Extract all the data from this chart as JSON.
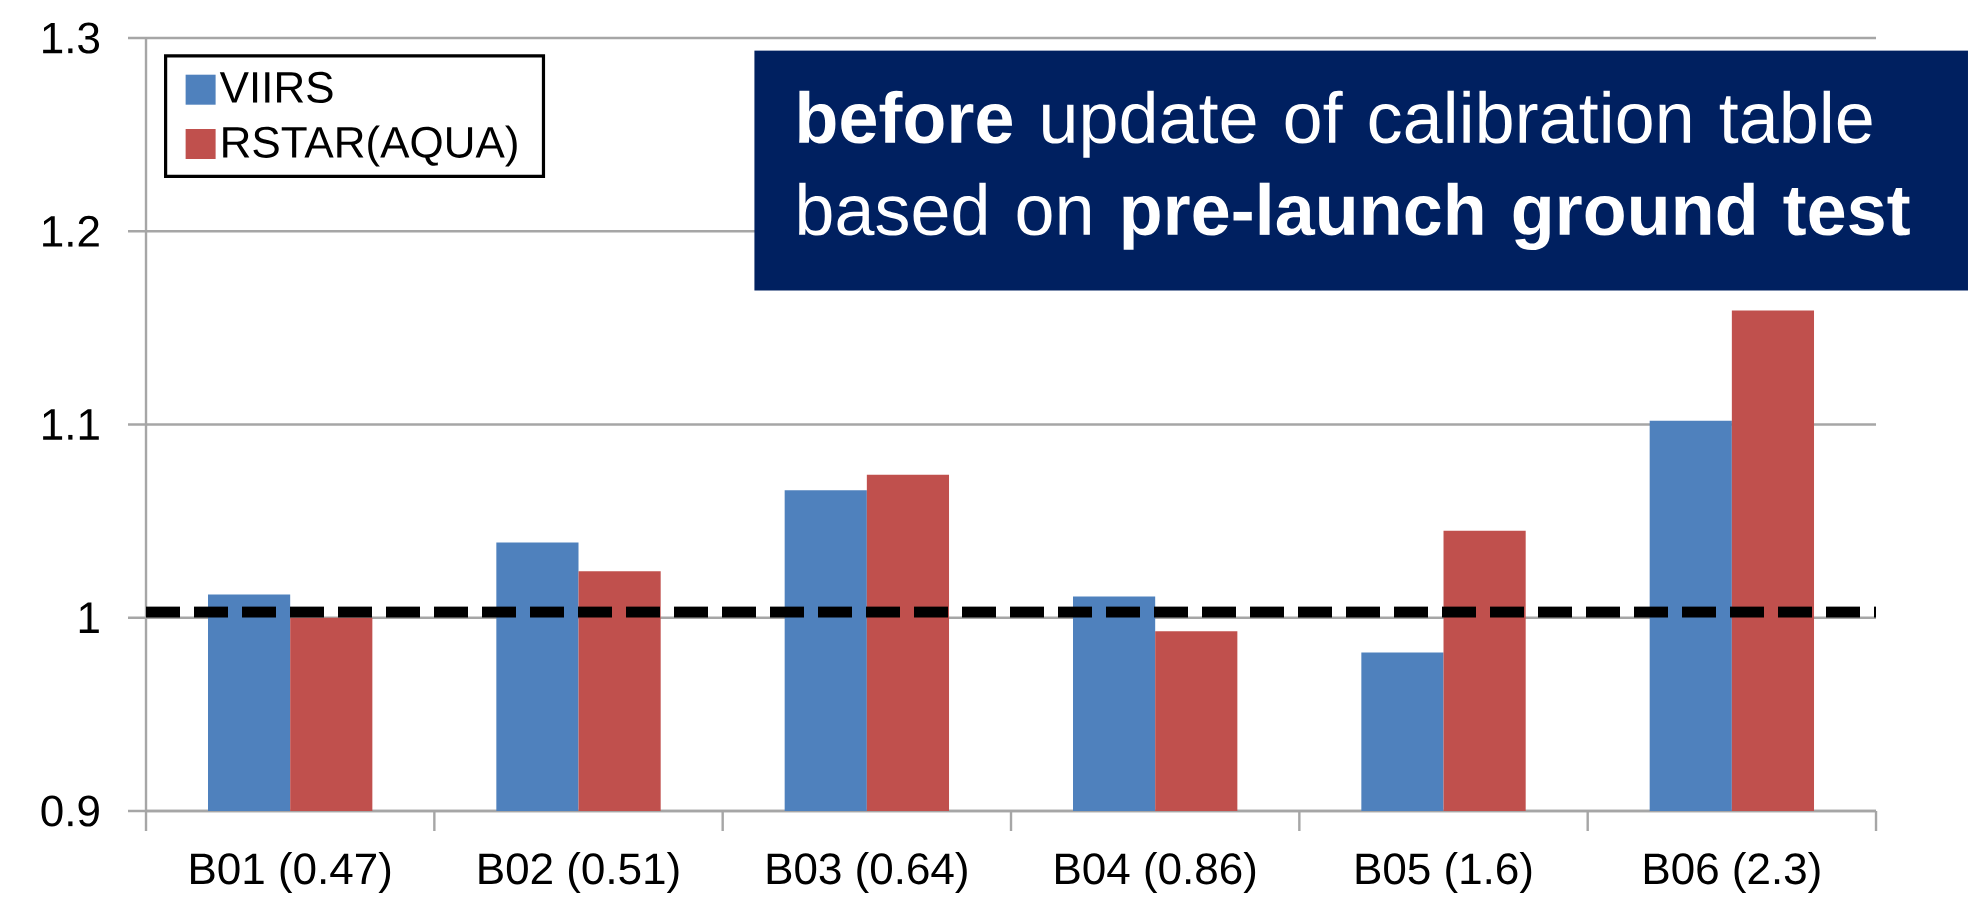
{
  "chart_data": {
    "type": "bar",
    "categories": [
      "B01 (0.47)",
      "B02 (0.51)",
      "B03 (0.64)",
      "B04 (0.86)",
      "B05 (1.6)",
      "B06 (2.3)"
    ],
    "series": [
      {
        "name": "VIIRS",
        "color": "#4f81bd",
        "values": [
          1.012,
          1.039,
          1.066,
          1.011,
          0.982,
          1.102
        ]
      },
      {
        "name": "RSTAR(AQUA)",
        "color": "#c0504d",
        "values": [
          1.0,
          1.024,
          1.074,
          0.993,
          1.045,
          1.159
        ]
      }
    ],
    "ylim": [
      0.9,
      1.3
    ],
    "yticks": [
      0.9,
      1,
      1.1,
      1.2,
      1.3
    ],
    "grid": "y",
    "legend": "top left",
    "ref_lines": [
      {
        "axis": "y",
        "value": 1.003,
        "color": "#000000",
        "line_style": "dashed"
      }
    ],
    "annotations": [
      "**before** update of calibration table based on **pre-launch ground test**"
    ]
  }
}
